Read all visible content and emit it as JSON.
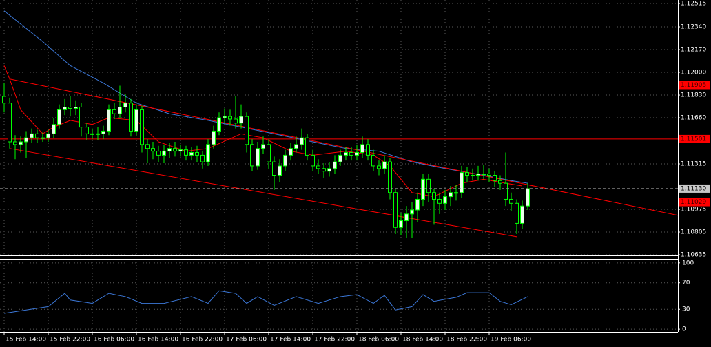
{
  "chart_data": [
    {
      "type": "candlestick",
      "categories": [
        "15 Feb 14:00",
        null,
        null,
        null,
        null,
        null,
        null,
        null,
        "15 Feb 22:00",
        null,
        null,
        null,
        null,
        null,
        null,
        null,
        "16 Feb 06:00",
        null,
        null,
        null,
        null,
        null,
        null,
        null,
        "16 Feb 14:00",
        null,
        null,
        null,
        null,
        null,
        null,
        null,
        "16 Feb 22:00",
        null,
        null,
        null,
        null,
        null,
        null,
        null,
        "17 Feb 06:00",
        null,
        null,
        null,
        null,
        null,
        null,
        null,
        "17 Feb 14:00",
        null,
        null,
        null,
        null,
        null,
        null,
        null,
        "17 Feb 22:00",
        null,
        null,
        null,
        null,
        null,
        null,
        null,
        "18 Feb 06:00",
        null,
        null,
        null,
        null,
        null,
        null,
        null,
        "18 Feb 14:00",
        null,
        null,
        null,
        null,
        null,
        null,
        null,
        "18 Feb 22:00",
        null,
        null,
        null,
        null,
        null,
        null,
        null,
        "19 Feb 06:00",
        null,
        null,
        null,
        null,
        null,
        null,
        null
      ],
      "open": [
        1.1182,
        1.1177,
        1.1148,
        1.1146,
        1.1148,
        1.1151,
        1.1154,
        1.1151,
        1.1151,
        1.1154,
        1.1161,
        1.1172,
        1.1174,
        1.1173,
        1.1174,
        1.1159,
        1.1154,
        1.1154,
        1.1154,
        1.1156,
        1.1172,
        1.1169,
        1.1174,
        1.1177,
        1.1156,
        1.1172,
        1.1146,
        1.1143,
        1.1141,
        1.1138,
        1.1141,
        1.1143,
        1.1141,
        1.1142,
        1.1138,
        1.114,
        1.1138,
        1.1133,
        1.1146,
        1.1156,
        1.1166,
        1.1167,
        1.1165,
        1.1162,
        1.1167,
        1.1146,
        1.113,
        1.1143,
        1.1146,
        1.1133,
        1.1123,
        1.113,
        1.1138,
        1.1143,
        1.1146,
        1.1151,
        1.1138,
        1.113,
        1.1128,
        1.1126,
        1.1128,
        1.1133,
        1.1138,
        1.114,
        1.1138,
        1.114,
        1.1146,
        1.1138,
        1.113,
        1.1128,
        1.1133,
        1.111,
        1.1084,
        1.1089,
        1.1094,
        1.1097,
        1.1105,
        1.112,
        1.111,
        1.1105,
        1.1102,
        1.1107,
        1.111,
        1.111,
        1.1125,
        1.1123,
        1.1123,
        1.1124,
        1.1124,
        1.1123,
        1.1119,
        1.1117,
        1.1105,
        1.1102,
        1.1087,
        1.11
      ],
      "high": [
        1.1192,
        1.1181,
        1.1153,
        1.1152,
        1.1156,
        1.1158,
        1.1157,
        1.1155,
        1.1157,
        1.1166,
        1.1176,
        1.118,
        1.1182,
        1.1179,
        1.1177,
        1.1162,
        1.1158,
        1.1159,
        1.116,
        1.1176,
        1.1177,
        1.119,
        1.1184,
        1.118,
        1.1176,
        1.1175,
        1.115,
        1.1148,
        1.1145,
        1.1146,
        1.1147,
        1.1148,
        1.1146,
        1.1145,
        1.1144,
        1.1145,
        1.1141,
        1.115,
        1.116,
        1.117,
        1.1173,
        1.1172,
        1.1182,
        1.1176,
        1.117,
        1.115,
        1.1148,
        1.1152,
        1.115,
        1.1137,
        1.1135,
        1.1142,
        1.1147,
        1.1152,
        1.1158,
        1.1154,
        1.1142,
        1.1135,
        1.1132,
        1.1133,
        1.1138,
        1.1142,
        1.1144,
        1.1144,
        1.1146,
        1.1152,
        1.115,
        1.1142,
        1.1134,
        1.1138,
        1.1136,
        1.1113,
        1.1095,
        1.11,
        1.1103,
        1.111,
        1.1124,
        1.1124,
        1.1113,
        1.111,
        1.1112,
        1.1115,
        1.1116,
        1.113,
        1.1129,
        1.1128,
        1.113,
        1.1131,
        1.1128,
        1.1126,
        1.1123,
        1.114,
        1.111,
        1.1105,
        1.1104,
        1.1117
      ],
      "low": [
        1.117,
        1.1143,
        1.1135,
        1.114,
        1.1136,
        1.1147,
        1.1147,
        1.1148,
        1.1148,
        1.1151,
        1.1158,
        1.1168,
        1.1167,
        1.1168,
        1.1152,
        1.1149,
        1.115,
        1.1149,
        1.115,
        1.1153,
        1.1165,
        1.1166,
        1.117,
        1.1152,
        1.1153,
        1.114,
        1.1132,
        1.1135,
        1.1133,
        1.1132,
        1.1136,
        1.1137,
        1.1137,
        1.1134,
        1.1134,
        1.1133,
        1.1128,
        1.113,
        1.1143,
        1.1153,
        1.1162,
        1.116,
        1.1158,
        1.1158,
        1.114,
        1.1126,
        1.1127,
        1.1139,
        1.1128,
        1.1112,
        1.1118,
        1.1126,
        1.1134,
        1.114,
        1.1142,
        1.1134,
        1.1126,
        1.1124,
        1.1121,
        1.1122,
        1.1124,
        1.113,
        1.1134,
        1.1134,
        1.1134,
        1.1136,
        1.1134,
        1.1126,
        1.1123,
        1.1124,
        1.1105,
        1.1079,
        1.1078,
        1.1076,
        1.1076,
        1.1088,
        1.11,
        1.1103,
        1.1086,
        1.1094,
        1.1097,
        1.11,
        1.1104,
        1.1106,
        1.1118,
        1.1119,
        1.1119,
        1.112,
        1.1118,
        1.1114,
        1.1112,
        1.11,
        1.1096,
        1.1079,
        1.1083,
        1.1097
      ],
      "close": [
        1.1177,
        1.1148,
        1.1146,
        1.1148,
        1.1151,
        1.1154,
        1.1151,
        1.1151,
        1.1154,
        1.1161,
        1.1172,
        1.1174,
        1.1173,
        1.1174,
        1.1159,
        1.1154,
        1.1154,
        1.1154,
        1.1156,
        1.1172,
        1.1169,
        1.1174,
        1.1177,
        1.1156,
        1.1172,
        1.1146,
        1.1143,
        1.1141,
        1.1138,
        1.1141,
        1.1143,
        1.1141,
        1.1142,
        1.1138,
        1.114,
        1.1138,
        1.1133,
        1.1146,
        1.1156,
        1.1166,
        1.1167,
        1.1165,
        1.1162,
        1.1167,
        1.1146,
        1.113,
        1.1143,
        1.1146,
        1.1133,
        1.1123,
        1.113,
        1.1138,
        1.1143,
        1.1146,
        1.1151,
        1.1138,
        1.113,
        1.1128,
        1.1126,
        1.1128,
        1.1133,
        1.1138,
        1.114,
        1.1138,
        1.114,
        1.1146,
        1.1138,
        1.113,
        1.1128,
        1.1133,
        1.111,
        1.1084,
        1.1089,
        1.1094,
        1.1097,
        1.1105,
        1.112,
        1.111,
        1.1105,
        1.1102,
        1.1107,
        1.111,
        1.111,
        1.1125,
        1.1123,
        1.1123,
        1.1124,
        1.1124,
        1.1123,
        1.1119,
        1.1117,
        1.1105,
        1.1102,
        1.1087,
        1.11,
        1.1113
      ],
      "bull_color": "#e8ffe8",
      "bear_color": "#000000",
      "candle_outline": "#00ff00",
      "ylim": [
        1.1063,
        1.12541
      ],
      "yticks": [
        1.12515,
        {
          "value": 1.1234,
          "label": "1.12340"
        },
        {
          "value": 1.1217,
          "label": "1.12170"
        },
        {
          "value": 1.12,
          "label": "1.12000"
        },
        {
          "value": 1.1183,
          "label": "1.11830"
        },
        {
          "value": 1.1166,
          "label": "1.11660"
        },
        1.11315,
        1.10975,
        1.10805,
        1.10635
      ],
      "grid": true,
      "moving_averages": [
        {
          "color": "#3c78d8",
          "x": [
            0,
            7,
            12,
            18,
            24,
            30,
            37,
            43,
            49,
            56,
            62,
            68,
            74,
            80,
            87,
            92,
            95
          ],
          "values": [
            1.1246,
            1.1223,
            1.1205,
            1.1192,
            1.1177,
            1.1169,
            1.1164,
            1.1159,
            1.1154,
            1.1148,
            1.1143,
            1.1141,
            1.1133,
            1.1128,
            1.1123,
            1.1119,
            1.1117
          ]
        },
        {
          "color": "#ff0000",
          "x": [
            0,
            1,
            3,
            7,
            9,
            12,
            16,
            19,
            24,
            28,
            33,
            37,
            43,
            47,
            52,
            56,
            62,
            67,
            70,
            74,
            78,
            83,
            87,
            91,
            94
          ],
          "values": [
            1.1205,
            1.1195,
            1.1172,
            1.1154,
            1.1159,
            1.1164,
            1.1161,
            1.1166,
            1.1164,
            1.1148,
            1.1141,
            1.1143,
            1.1154,
            1.1151,
            1.1141,
            1.1138,
            1.1141,
            1.1138,
            1.113,
            1.111,
            1.1107,
            1.1117,
            1.112,
            1.1117,
            1.1115
          ]
        }
      ],
      "trendlines": [
        {
          "color": "#ff0000",
          "x": [
            1,
            122.25
          ],
          "values": [
            1.1195,
            1.1093
          ]
        },
        {
          "color": "#ff0000",
          "x": [
            1,
            93
          ],
          "values": [
            1.1143,
            1.1077
          ]
        }
      ],
      "levels": [
        {
          "value": 1.11905,
          "color": "#ff0000"
        },
        {
          "value": 1.11501,
          "color": "#ff0000"
        },
        {
          "value": 1.11029,
          "color": "#ff0000"
        }
      ],
      "current_price": {
        "value": 1.1113,
        "label": "1.11130"
      }
    },
    {
      "type": "line",
      "x": [
        0,
        4,
        8,
        11,
        12,
        16,
        19,
        22,
        25,
        29,
        34,
        37,
        39,
        42,
        44,
        46,
        49,
        53,
        57,
        61,
        64,
        67,
        69,
        71,
        74,
        76,
        78,
        82,
        84,
        88,
        90,
        92,
        95
      ],
      "values": [
        24,
        29,
        34,
        54,
        44,
        39,
        54,
        49,
        39,
        39,
        49,
        39,
        58,
        54,
        39,
        49,
        36,
        49,
        39,
        49,
        52,
        39,
        51,
        29,
        34,
        52,
        42,
        48,
        55,
        55,
        42,
        37,
        49
      ],
      "color": "#3c78d8",
      "ylim": [
        -4,
        105
      ],
      "yticks": [
        0,
        30,
        70,
        100
      ],
      "grid": true
    }
  ]
}
